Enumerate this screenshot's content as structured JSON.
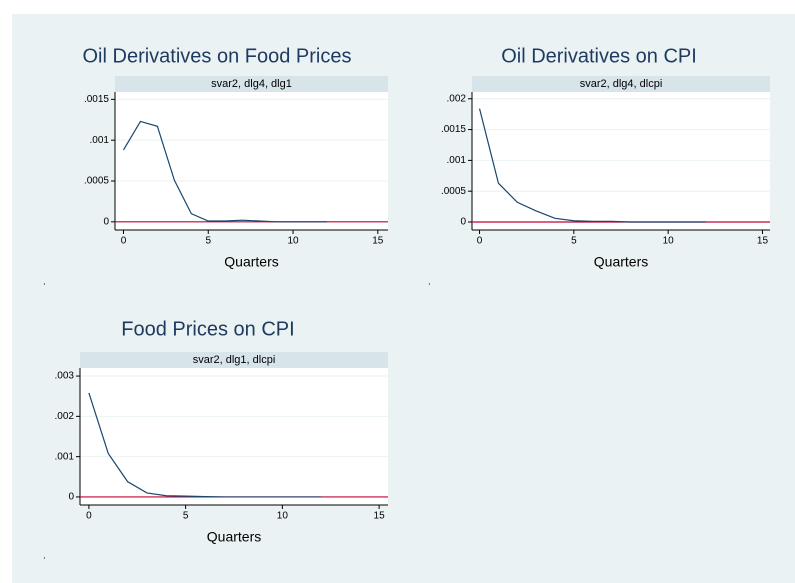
{
  "chart_data": [
    {
      "type": "line",
      "title": "Oil Derivatives on Food Prices",
      "subtitle": "svar2, dlg4, dlg1",
      "xlabel": "Quarters",
      "note": ".",
      "x": [
        0,
        1,
        2,
        3,
        4,
        5,
        6,
        7,
        8,
        9,
        10,
        11,
        12
      ],
      "series": [
        {
          "color": "#1a476f",
          "values": [
            0.00088,
            0.00123,
            0.00117,
            0.00051,
            0.0001,
            1e-05,
            1e-05,
            2e-05,
            1e-05,
            0,
            0,
            0,
            0
          ]
        }
      ],
      "xlim": [
        -0.5,
        15.6
      ],
      "xticks": [
        0,
        5,
        10,
        15
      ],
      "ylim": [
        -0.0001,
        0.00159
      ],
      "yticks": [
        0,
        {
          "value": 0.0005,
          "label": ".0005"
        },
        {
          "value": 0.001,
          "label": ".001"
        },
        {
          "value": 0.0015,
          "label": ".0015"
        }
      ],
      "hline": 0,
      "hline_color": "#c10534",
      "grid": true
    },
    {
      "type": "line",
      "title": "Oil Derivatives on CPI",
      "subtitle": "svar2, dlg4, dlcpi",
      "xlabel": "Quarters",
      "note": ".",
      "x": [
        0,
        1,
        2,
        3,
        4,
        5,
        6,
        7,
        8,
        9,
        10,
        11,
        12
      ],
      "series": [
        {
          "color": "#1a476f",
          "values": [
            0.00184,
            0.00063,
            0.00032,
            0.00018,
            6e-05,
            2e-05,
            1e-05,
            1e-05,
            0,
            0,
            0,
            0,
            0
          ]
        }
      ],
      "xlim": [
        -0.4,
        15.4
      ],
      "xticks": [
        0,
        5,
        10,
        15
      ],
      "ylim": [
        -0.00013,
        0.00211
      ],
      "yticks": [
        0,
        {
          "value": 0.0005,
          "label": ".0005"
        },
        {
          "value": 0.001,
          "label": ".001"
        },
        {
          "value": 0.0015,
          "label": ".0015"
        },
        {
          "value": 0.002,
          "label": ".002"
        }
      ],
      "hline": 0,
      "hline_color": "#c10534",
      "grid": true
    },
    {
      "type": "line",
      "title": "Food Prices on CPI",
      "subtitle": "svar2, dlg1, dlcpi",
      "xlabel": "Quarters",
      "note": ".",
      "x": [
        0,
        1,
        2,
        3,
        4,
        5,
        6,
        7,
        8,
        9,
        10,
        11,
        12
      ],
      "series": [
        {
          "color": "#1a476f",
          "values": [
            0.00258,
            0.00108,
            0.00038,
            0.0001,
            3e-05,
            2e-05,
            1e-05,
            0,
            0,
            0,
            0,
            0,
            0
          ]
        }
      ],
      "xlim": [
        -0.46,
        15.46
      ],
      "xticks": [
        0,
        5,
        10,
        15
      ],
      "ylim": [
        -0.0002,
        0.0032
      ],
      "yticks": [
        0,
        {
          "value": 0.001,
          "label": ".001"
        },
        {
          "value": 0.002,
          "label": ".002"
        },
        {
          "value": 0.003,
          "label": ".003"
        }
      ],
      "hline": 0,
      "hline_color": "#c10534",
      "grid": true
    }
  ]
}
